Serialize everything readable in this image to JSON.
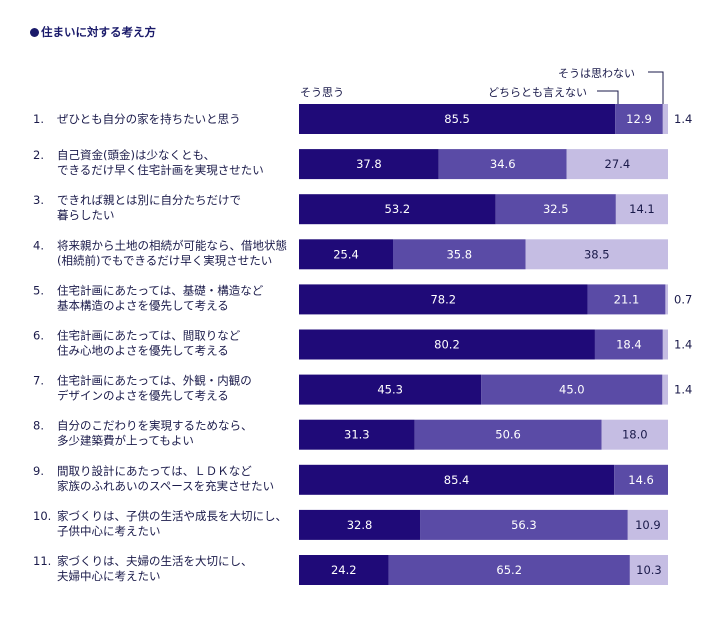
{
  "title": "住まいに対する考え方",
  "legend": {
    "agree": "そう思う",
    "neutral": "どちらとも言えない",
    "disagree": "そうは思わない"
  },
  "colors": {
    "agree": "#1f0a78",
    "neutral": "#5a4ba6",
    "disagree": "#c5bde3",
    "text_on_dark": "#ffffff",
    "text_on_light": "#1a1a4a"
  },
  "chart_data": {
    "type": "bar",
    "orientation": "horizontal-stacked-100",
    "series": [
      {
        "name": "そう思う",
        "values": [
          85.5,
          37.8,
          53.2,
          25.4,
          78.2,
          80.2,
          45.3,
          31.3,
          85.4,
          32.8,
          24.2
        ]
      },
      {
        "name": "どちらとも言えない",
        "values": [
          12.9,
          34.6,
          32.5,
          35.8,
          21.1,
          18.4,
          45.0,
          50.6,
          14.6,
          56.3,
          65.2
        ]
      },
      {
        "name": "そうは思わない",
        "values": [
          1.4,
          27.4,
          14.1,
          38.5,
          0.7,
          1.4,
          1.4,
          18.0,
          null,
          10.9,
          10.3
        ]
      }
    ],
    "categories": [
      {
        "num": "1.",
        "lines": [
          "ぜひとも自分の家を持ちたいと思う"
        ]
      },
      {
        "num": "2.",
        "lines": [
          "自己資金(頭金)は少なくとも、",
          "できるだけ早く住宅計画を実現させたい"
        ]
      },
      {
        "num": "3.",
        "lines": [
          "できれば親とは別に自分たちだけで",
          "暮らしたい"
        ]
      },
      {
        "num": "4.",
        "lines": [
          "将来親から土地の相続が可能なら、借地状態",
          "(相続前)でもできるだけ早く実現させたい"
        ]
      },
      {
        "num": "5.",
        "lines": [
          "住宅計画にあたっては、基礎・構造など",
          "基本構造のよさを優先して考える"
        ]
      },
      {
        "num": "6.",
        "lines": [
          "住宅計画にあたっては、間取りなど",
          "住み心地のよさを優先して考える"
        ]
      },
      {
        "num": "7.",
        "lines": [
          "住宅計画にあたっては、外観・内観の",
          "デザインのよさを優先して考える"
        ]
      },
      {
        "num": "8.",
        "lines": [
          "自分のこだわりを実現するためなら、",
          "多少建築費が上ってもよい"
        ]
      },
      {
        "num": "9.",
        "lines": [
          "間取り設計にあたっては、ＬＤＫなど",
          "家族のふれあいのスペースを充実させたい"
        ]
      },
      {
        "num": "10.",
        "lines": [
          "家づくりは、子供の生活や成長を大切にし、",
          "子供中心に考えたい"
        ]
      },
      {
        "num": "11.",
        "lines": [
          "家づくりは、夫婦の生活を大切にし、",
          "夫婦中心に考えたい"
        ]
      }
    ],
    "value_labels": [
      [
        "85.5",
        "12.9",
        "1.4"
      ],
      [
        "37.8",
        "34.6",
        "27.4"
      ],
      [
        "53.2",
        "32.5",
        "14.1"
      ],
      [
        "25.4",
        "35.8",
        "38.5"
      ],
      [
        "78.2",
        "21.1",
        "0.7"
      ],
      [
        "80.2",
        "18.4",
        "1.4"
      ],
      [
        "45.3",
        "45.0",
        "1.4"
      ],
      [
        "31.3",
        "50.6",
        "18.0"
      ],
      [
        "85.4",
        "14.6",
        ""
      ],
      [
        "32.8",
        "56.3",
        "10.9"
      ],
      [
        "24.2",
        "65.2",
        "10.3"
      ]
    ],
    "xlim": [
      0,
      100
    ]
  }
}
